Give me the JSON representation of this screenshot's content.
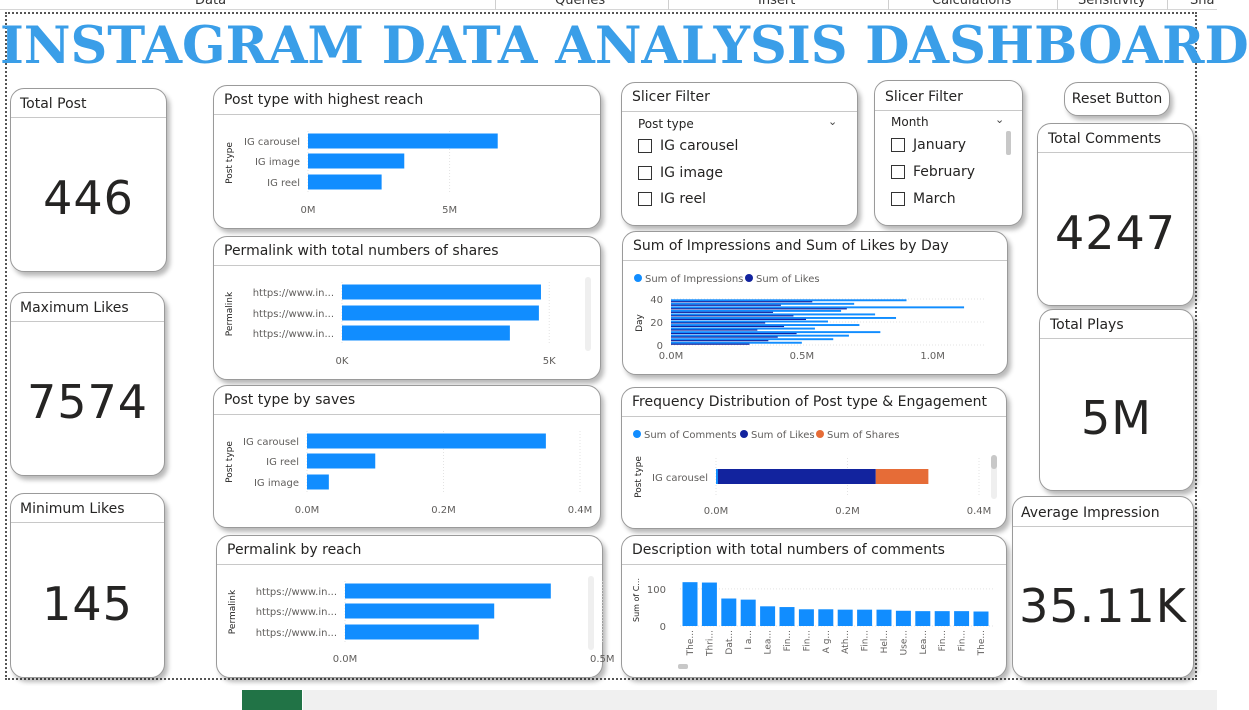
{
  "ribbon": {
    "items": [
      "Data",
      "Queries",
      "Insert",
      "Calculations",
      "Sensitivity",
      "Sha"
    ]
  },
  "dashboard_title": "INSTAGRAM DATA ANALYSIS DASHBOARD",
  "kpis": {
    "total_post": {
      "label": "Total Post",
      "value": "446"
    },
    "maximum_likes": {
      "label": "Maximum Likes",
      "value": "7574"
    },
    "minimum_likes": {
      "label": "Minimum Likes",
      "value": "145"
    },
    "total_comments": {
      "label": "Total Comments",
      "value": "4247"
    },
    "total_plays": {
      "label": "Total Plays",
      "value": "5M"
    },
    "average_impression": {
      "label": "Average Impression",
      "value": "35.11K"
    }
  },
  "slicers": {
    "post_type": {
      "title": "Slicer Filter",
      "field": "Post type",
      "options": [
        "IG carousel",
        "IG image",
        "IG reel"
      ]
    },
    "month": {
      "title": "Slicer Filter",
      "field": "Month",
      "options": [
        "January",
        "February",
        "March"
      ]
    }
  },
  "reset_button": {
    "label": "Reset Button"
  },
  "colors": {
    "title": "#3a9ee8",
    "bar_blue": "#118dff",
    "dark_blue": "#12239e",
    "orange": "#e66c37"
  },
  "chart_data": [
    {
      "id": "reach_by_type",
      "type": "bar",
      "orientation": "horizontal",
      "title": "Post type with highest reach",
      "ylabel": "Post type",
      "categories": [
        "IG carousel",
        "IG image",
        "IG reel"
      ],
      "values": [
        6.7,
        3.4,
        2.6
      ],
      "xlim": [
        0,
        9.5
      ],
      "ticks": [
        {
          "v": 0,
          "label": "0M"
        },
        {
          "v": 5,
          "label": "5M"
        }
      ]
    },
    {
      "id": "shares_by_permalink",
      "type": "bar",
      "orientation": "horizontal",
      "title": "Permalink with total numbers of shares",
      "ylabel": "Permalink",
      "categories": [
        "https://www.in...",
        "https://www.in...",
        "https://www.in..."
      ],
      "values": [
        4.8,
        4.75,
        4.05
      ],
      "xlim": [
        0,
        6.2
      ],
      "ticks": [
        {
          "v": 0,
          "label": "0K"
        },
        {
          "v": 5,
          "label": "5K"
        }
      ]
    },
    {
      "id": "saves_by_type",
      "type": "bar",
      "orientation": "horizontal",
      "title": "Post type by saves",
      "ylabel": "Post type",
      "categories": [
        "IG carousel",
        "IG reel",
        "IG image"
      ],
      "values": [
        0.35,
        0.1,
        0.032
      ],
      "xlim": [
        0,
        0.4
      ],
      "ticks": [
        {
          "v": 0,
          "label": "0.0M"
        },
        {
          "v": 0.2,
          "label": "0.2M"
        },
        {
          "v": 0.4,
          "label": "0.4M"
        }
      ]
    },
    {
      "id": "reach_by_permalink",
      "type": "bar",
      "orientation": "horizontal",
      "title": "Permalink by reach",
      "ylabel": "Permalink",
      "categories": [
        "https://www.in...",
        "https://www.in...",
        "https://www.in..."
      ],
      "values": [
        0.4,
        0.29,
        0.26
      ],
      "xlim": [
        0,
        0.62
      ],
      "ticks": [
        {
          "v": 0,
          "label": "0.0M"
        },
        {
          "v": 0.5,
          "label": "0.5M"
        }
      ]
    },
    {
      "id": "impressions_likes_by_day",
      "type": "bar",
      "orientation": "horizontal",
      "title": "Sum of Impressions and Sum of Likes by Day",
      "ylabel": "Day",
      "legend": [
        "Sum of Impressions",
        "Sum of Likes"
      ],
      "xlim": [
        0,
        1.2
      ],
      "ylim": [
        0,
        40
      ],
      "yticks": [
        0,
        20,
        40
      ],
      "ticks": [
        {
          "v": 0,
          "label": "0.0M"
        },
        {
          "v": 0.5,
          "label": "0.5M"
        },
        {
          "v": 1.0,
          "label": "1.0M"
        }
      ],
      "series": [
        {
          "name": "Sum of Impressions",
          "values": [
            0.9,
            0.7,
            1.12,
            0.65,
            0.78,
            0.86,
            0.6,
            0.72,
            0.55,
            0.8,
            0.68,
            0.62,
            0.5
          ]
        },
        {
          "name": "Sum of Likes",
          "values": [
            0.012,
            0.01,
            0.014,
            0.009,
            0.011,
            0.012,
            0.008,
            0.01,
            0.008,
            0.011,
            0.009,
            0.009,
            0.007
          ]
        }
      ]
    },
    {
      "id": "post_type_engagement",
      "type": "bar",
      "orientation": "horizontal",
      "stacked": true,
      "title": "Frequency Distribution of Post type & Engagement",
      "ylabel": "Post type",
      "legend": [
        "Sum of Comments",
        "Sum of Likes",
        "Sum of Shares"
      ],
      "categories": [
        "IG carousel"
      ],
      "series": [
        {
          "name": "Sum of Comments",
          "values": [
            0.003
          ]
        },
        {
          "name": "Sum of Likes",
          "values": [
            0.24
          ]
        },
        {
          "name": "Sum of Shares",
          "values": [
            0.08
          ]
        }
      ],
      "xlim": [
        0,
        0.4
      ],
      "ticks": [
        {
          "v": 0,
          "label": "0.0M"
        },
        {
          "v": 0.2,
          "label": "0.2M"
        },
        {
          "v": 0.4,
          "label": "0.4M"
        }
      ]
    },
    {
      "id": "comments_by_description",
      "type": "bar",
      "orientation": "vertical",
      "title": "Description with total numbers of comments",
      "ylabel": "Sum of C...",
      "categories": [
        "The...",
        "Thri...",
        "Dat...",
        "I a...",
        "Lea...",
        "Fin...",
        "Fin...",
        "A g...",
        "Ath...",
        "Fin...",
        "Hel...",
        "Use...",
        "Lea...",
        "Fin...",
        "Fin...",
        "The..."
      ],
      "values": [
        118,
        117,
        74,
        71,
        53,
        51,
        45,
        45,
        44,
        44,
        44,
        41,
        40,
        40,
        40,
        39
      ],
      "ylim": [
        0,
        140
      ],
      "yticks": [
        0,
        100
      ]
    }
  ]
}
